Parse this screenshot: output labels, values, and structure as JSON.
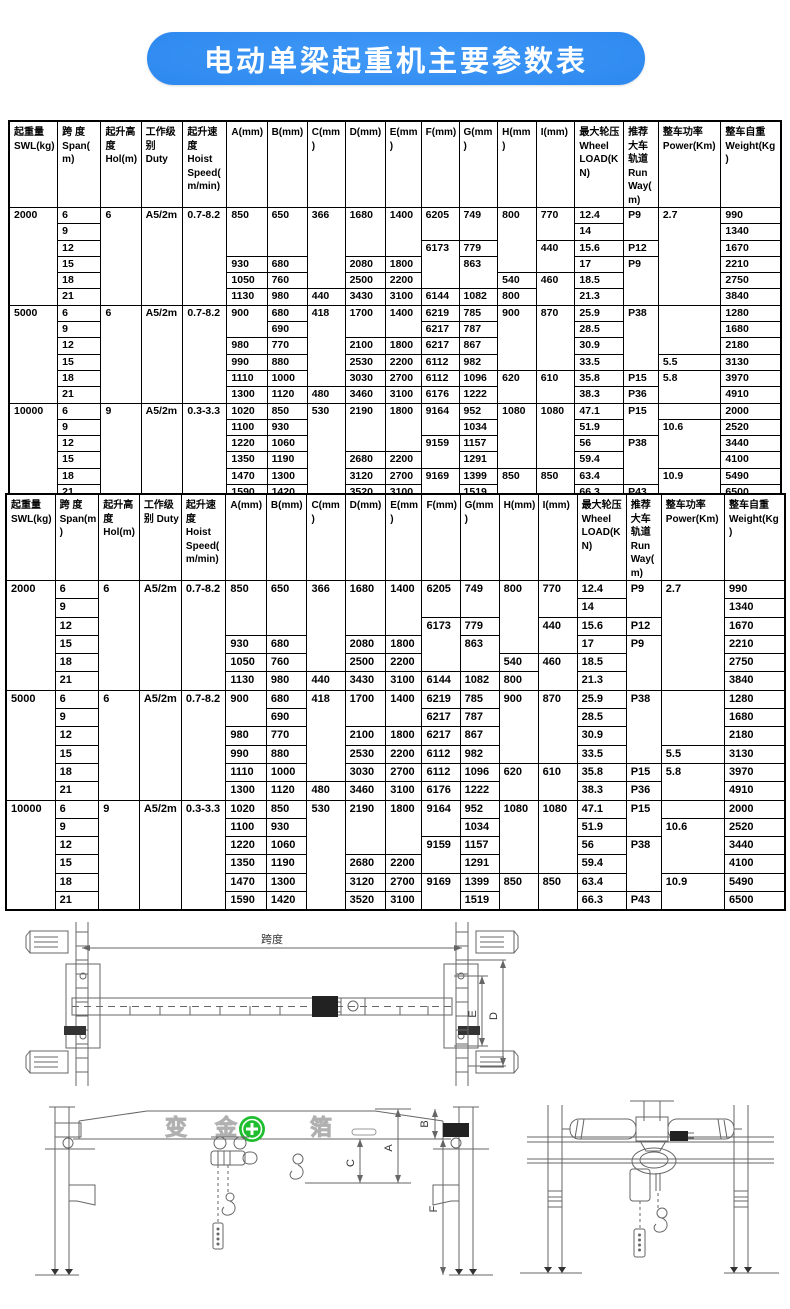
{
  "title": "电动单梁起重机主要参数表",
  "colors": {
    "banner_blue": "#2d88ef",
    "badge_green": "#1fbe2e",
    "table_border": "#000000"
  },
  "table": {
    "headers": [
      "起重量 SWL(kg)",
      "跨  度 Span(m)",
      "起升高度 Hol(m)",
      "工作级别 Duty",
      "起升速度 Hoist Speed( m/min)",
      "A(mm)",
      "B(mm)",
      "C(mm)",
      "D(mm)",
      "E(mm)",
      "F(mm)",
      "G(mm)",
      "H(mm)",
      "I(mm)",
      "最大轮压 Wheel LOAD(KN)",
      "推荐大车轨道 Run Way(m)",
      "整车功率 Power(Km)",
      "整车自重 Weight(Kg)"
    ],
    "rows": [
      [
        [
          "2000",
          6
        ],
        "6",
        [
          "6",
          6
        ],
        [
          "A5/2m",
          6
        ],
        [
          "0.7-8.2",
          6
        ],
        [
          "850",
          3
        ],
        [
          "650",
          3
        ],
        [
          "366",
          5
        ],
        [
          "1680",
          3
        ],
        [
          "1400",
          3
        ],
        [
          "6205",
          2
        ],
        [
          "749",
          2
        ],
        [
          "800",
          4
        ],
        [
          "770",
          2
        ],
        "12.4",
        [
          "P9",
          2
        ],
        [
          "2.7",
          6
        ],
        "990"
      ],
      [
        null,
        "9",
        null,
        null,
        null,
        null,
        null,
        null,
        null,
        null,
        null,
        null,
        null,
        null,
        "14",
        null,
        null,
        "1340"
      ],
      [
        null,
        "12",
        null,
        null,
        null,
        null,
        null,
        null,
        null,
        null,
        [
          "6173",
          3
        ],
        "779",
        null,
        [
          "440",
          2
        ],
        "15.6",
        "P12",
        null,
        "1670"
      ],
      [
        null,
        "15",
        null,
        null,
        null,
        "930",
        "680",
        null,
        "2080",
        "1800",
        null,
        [
          "863",
          2
        ],
        null,
        null,
        "17",
        [
          "P9",
          3
        ],
        null,
        "2210"
      ],
      [
        null,
        "18",
        null,
        null,
        null,
        "1050",
        "760",
        null,
        "2500",
        "2200",
        null,
        null,
        "540",
        [
          "460",
          2
        ],
        "18.5",
        null,
        null,
        "2750"
      ],
      [
        null,
        "21",
        null,
        null,
        null,
        "1130",
        "980",
        "440",
        "3430",
        "3100",
        "6144",
        "1082",
        "800",
        null,
        "21.3",
        null,
        null,
        "3840"
      ],
      [
        [
          "5000",
          6
        ],
        "6",
        [
          "6",
          6
        ],
        [
          "A5/2m",
          6
        ],
        [
          "0.7-8.2",
          6
        ],
        [
          "900",
          2
        ],
        "680",
        [
          "418",
          5
        ],
        [
          "1700",
          2
        ],
        [
          "1400",
          2
        ],
        "6219",
        "785",
        [
          "900",
          4
        ],
        [
          "870",
          4
        ],
        "25.9",
        [
          "P38",
          4
        ],
        [
          "",
          3
        ],
        "1280"
      ],
      [
        null,
        "9",
        null,
        null,
        null,
        null,
        "690",
        null,
        null,
        null,
        "6217",
        "787",
        null,
        null,
        "28.5",
        null,
        null,
        "1680"
      ],
      [
        null,
        "12",
        null,
        null,
        null,
        "980",
        "770",
        null,
        "2100",
        "1800",
        "6217",
        "867",
        null,
        null,
        "30.9",
        null,
        null,
        "2180"
      ],
      [
        null,
        "15",
        null,
        null,
        null,
        "990",
        "880",
        null,
        "2530",
        "2200",
        "6112",
        "982",
        null,
        null,
        "33.5",
        null,
        "5.5",
        "3130"
      ],
      [
        null,
        "18",
        null,
        null,
        null,
        "1110",
        "1000",
        null,
        "3030",
        "2700",
        "6112",
        "1096",
        [
          "620",
          2
        ],
        [
          "610",
          2
        ],
        "35.8",
        "P15",
        [
          "5.8",
          2
        ],
        "3970"
      ],
      [
        null,
        "21",
        null,
        null,
        null,
        "1300",
        "1120",
        "480",
        "3460",
        "3100",
        "6176",
        "1222",
        null,
        null,
        "38.3",
        "P36",
        null,
        "4910"
      ],
      [
        [
          "10000",
          6
        ],
        "6",
        [
          "9",
          6
        ],
        [
          "A5/2m",
          6
        ],
        [
          "0.3-3.3",
          6
        ],
        "1020",
        "850",
        [
          "530",
          6
        ],
        [
          "2190",
          3
        ],
        [
          "1800",
          3
        ],
        [
          "9164",
          2
        ],
        "952",
        [
          "1080",
          4
        ],
        [
          "1080",
          4
        ],
        "47.1",
        [
          "P15",
          2
        ],
        "",
        "2000"
      ],
      [
        null,
        "9",
        null,
        null,
        null,
        "1100",
        "930",
        null,
        null,
        null,
        null,
        "1034",
        null,
        null,
        "51.9",
        null,
        [
          "10.6",
          3
        ],
        "2520"
      ],
      [
        null,
        "12",
        null,
        null,
        null,
        "1220",
        "1060",
        null,
        null,
        null,
        [
          "9159",
          2
        ],
        "1157",
        null,
        null,
        "56",
        [
          "P38",
          3
        ],
        null,
        "3440"
      ],
      [
        null,
        "15",
        null,
        null,
        null,
        "1350",
        "1190",
        null,
        "2680",
        "2200",
        null,
        "1291",
        null,
        null,
        "59.4",
        null,
        null,
        "4100"
      ],
      [
        null,
        "18",
        null,
        null,
        null,
        "1470",
        "1300",
        null,
        "3120",
        "2700",
        [
          "9169",
          2
        ],
        "1399",
        [
          "850",
          2
        ],
        [
          "850",
          2
        ],
        "63.4",
        null,
        [
          "10.9",
          2
        ],
        "5490"
      ],
      [
        null,
        "21",
        null,
        null,
        null,
        "1590",
        "1420",
        null,
        "3520",
        "3100",
        null,
        "1519",
        null,
        null,
        "66.3",
        "P43",
        null,
        "6500"
      ]
    ]
  },
  "diagram": {
    "top_view": {
      "span_label": "跨度",
      "dim_e": "E",
      "dim_d": "D"
    },
    "front_view": {
      "watermark_1": "变",
      "watermark_2": "金",
      "watermark_3": "箔",
      "dim_a": "A",
      "dim_b": "B",
      "dim_c": "C",
      "dim_f": "F"
    }
  }
}
